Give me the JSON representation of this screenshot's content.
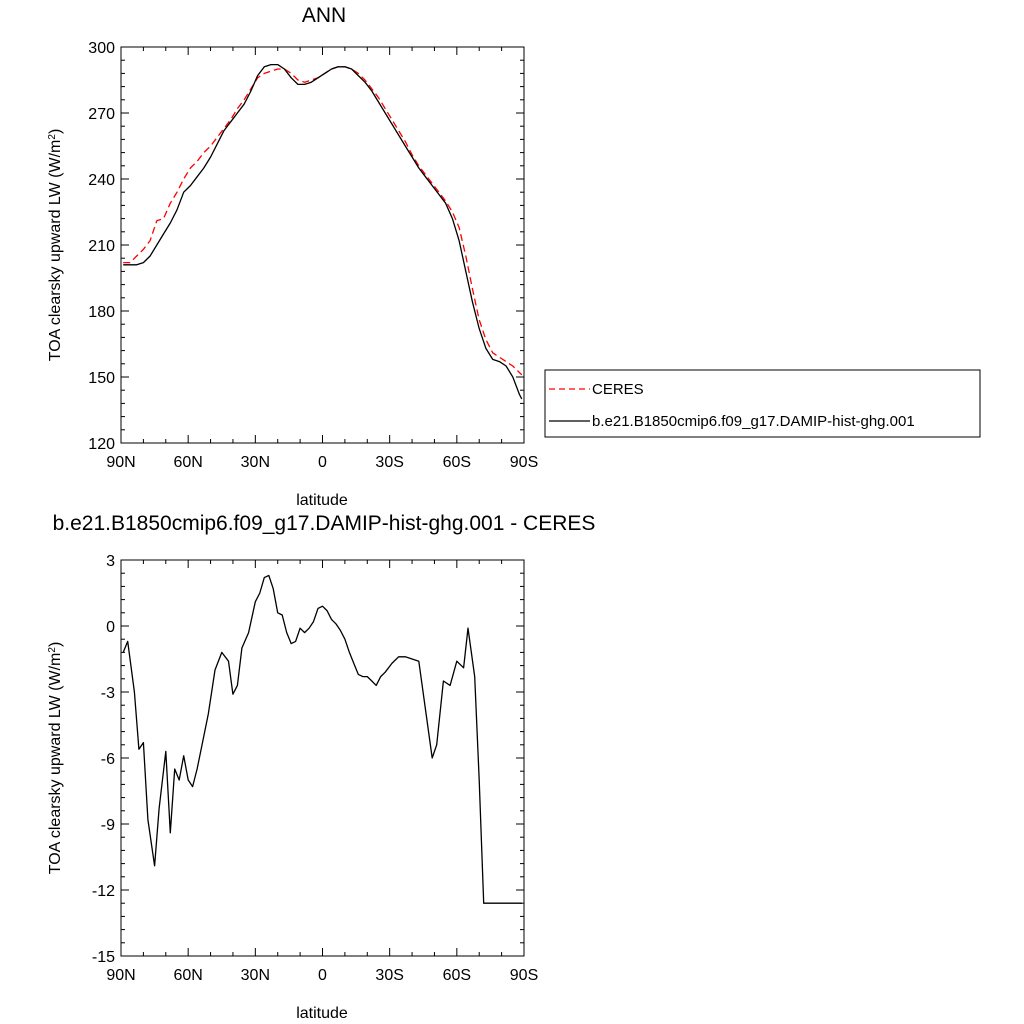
{
  "chart_data": [
    {
      "type": "line",
      "title": "ANN",
      "xlabel": "latitude",
      "ylabel": "TOA clearsky upward LW (W/m",
      "ylabel_sup": "2",
      "ylabel_close": ")",
      "xlim": [
        90,
        -90
      ],
      "ylim": [
        120,
        300
      ],
      "xticks": [
        90,
        60,
        30,
        0,
        -30,
        -60,
        -90
      ],
      "xtick_labels": [
        "90N",
        "60N",
        "30N",
        "0",
        "30S",
        "60S",
        "90S"
      ],
      "yticks": [
        120,
        150,
        180,
        210,
        240,
        270,
        300
      ],
      "ytick_labels": [
        "120",
        "150",
        "180",
        "210",
        "240",
        "270",
        "300"
      ],
      "legend_position": "right",
      "series": [
        {
          "name": "CERES",
          "color": "#ff0000",
          "dash": "dashed",
          "x": [
            89,
            86,
            83,
            80,
            77,
            74,
            71,
            68,
            65,
            62,
            59,
            56,
            53,
            50,
            47,
            44,
            41,
            38,
            35,
            32,
            29,
            26,
            23,
            20,
            17,
            14,
            11,
            8,
            5,
            2,
            -1,
            -4,
            -7,
            -10,
            -13,
            -16,
            -19,
            -22,
            -25,
            -28,
            -31,
            -34,
            -37,
            -40,
            -43,
            -46,
            -49,
            -52,
            -55,
            -58,
            -61,
            -64,
            -67,
            -70,
            -73,
            -76,
            -79,
            -82,
            -85,
            -88,
            -89
          ],
          "y": [
            202,
            202,
            205,
            208,
            212,
            221,
            222,
            229,
            234,
            240,
            245,
            248,
            252,
            255,
            259,
            263,
            267,
            272,
            276,
            281,
            286,
            288,
            289,
            290,
            290,
            288,
            285,
            284,
            285,
            286,
            288,
            290,
            291,
            291,
            290,
            288,
            285,
            281,
            277,
            272,
            267,
            262,
            257,
            251,
            246,
            242,
            238,
            234,
            230,
            225,
            218,
            205,
            190,
            176,
            167,
            161,
            159,
            157,
            155,
            152,
            151
          ]
        },
        {
          "name": "b.e21.B1850cmip6.f09_g17.DAMIP-hist-ghg.001",
          "color": "#000000",
          "dash": "solid",
          "x": [
            89,
            86,
            83,
            80,
            77,
            74,
            71,
            68,
            65,
            62,
            59,
            56,
            53,
            50,
            47,
            44,
            41,
            38,
            35,
            32,
            29,
            26,
            23,
            20,
            17,
            14,
            11,
            8,
            5,
            2,
            -1,
            -4,
            -7,
            -10,
            -13,
            -16,
            -19,
            -22,
            -25,
            -28,
            -31,
            -34,
            -37,
            -40,
            -43,
            -46,
            -49,
            -52,
            -55,
            -58,
            -61,
            -64,
            -67,
            -70,
            -73,
            -76,
            -79,
            -82,
            -85,
            -88,
            -89
          ],
          "y": [
            201,
            201,
            201,
            202,
            205,
            210,
            215,
            220,
            226,
            234,
            237,
            241,
            245,
            250,
            256,
            262,
            266,
            270,
            274,
            280,
            287,
            291,
            292,
            292,
            290,
            286,
            283,
            283,
            284,
            286,
            288,
            290,
            291,
            291,
            290,
            287,
            284,
            280,
            275,
            270,
            265,
            260,
            255,
            250,
            245,
            241,
            237,
            233,
            229,
            222,
            212,
            198,
            184,
            172,
            163,
            158,
            157,
            155,
            150,
            142,
            140
          ]
        }
      ]
    },
    {
      "type": "line",
      "title": "b.e21.B1850cmip6.f09_g17.DAMIP-hist-ghg.001 - CERES",
      "xlabel": "latitude",
      "ylabel": "TOA clearsky upward LW (W/m",
      "ylabel_sup": "2",
      "ylabel_close": ")",
      "xlim": [
        90,
        -90
      ],
      "ylim": [
        -15,
        3
      ],
      "xticks": [
        90,
        60,
        30,
        0,
        -30,
        -60,
        -90
      ],
      "xtick_labels": [
        "90N",
        "60N",
        "30N",
        "0",
        "30S",
        "60S",
        "90S"
      ],
      "yticks": [
        -15,
        -12,
        -9,
        -6,
        -3,
        0,
        3
      ],
      "ytick_labels": [
        "-15",
        "-12",
        "-9",
        "-6",
        "-3",
        "0",
        "3"
      ],
      "series": [
        {
          "color": "#000000",
          "dash": "solid",
          "x": [
            89,
            87,
            84,
            82,
            80,
            78,
            75,
            73,
            70,
            68,
            66,
            64,
            62,
            60,
            58,
            56,
            54,
            51,
            48,
            45,
            42,
            40,
            38,
            36,
            33,
            30,
            28,
            26,
            24,
            22,
            20,
            18,
            16,
            14,
            12,
            10,
            8,
            6,
            4,
            2,
            0,
            -2,
            -4,
            -6,
            -8,
            -10,
            -12,
            -14,
            -16,
            -18,
            -20,
            -22,
            -24,
            -26,
            -28,
            -31,
            -34,
            -37,
            -40,
            -43,
            -46,
            -49,
            -51,
            -54,
            -57,
            -60,
            -63,
            -65,
            -68,
            -70,
            -72,
            -74,
            -76,
            -78,
            -80,
            -82,
            -84,
            -86,
            -88,
            -89
          ],
          "y": [
            -1.2,
            -0.7,
            -3.0,
            -5.6,
            -5.3,
            -8.8,
            -10.9,
            -8.3,
            -5.7,
            -9.4,
            -6.5,
            -7.0,
            -5.9,
            -7.0,
            -7.3,
            -6.5,
            -5.5,
            -4.0,
            -2.0,
            -1.2,
            -1.6,
            -3.1,
            -2.7,
            -1.0,
            -0.3,
            1.1,
            1.5,
            2.2,
            2.3,
            1.7,
            0.6,
            0.5,
            -0.3,
            -0.8,
            -0.7,
            -0.1,
            -0.3,
            -0.1,
            0.2,
            0.8,
            0.9,
            0.7,
            0.3,
            0.1,
            -0.2,
            -0.6,
            -1.2,
            -1.7,
            -2.2,
            -2.3,
            -2.3,
            -2.5,
            -2.7,
            -2.3,
            -2.1,
            -1.7,
            -1.4,
            -1.4,
            -1.5,
            -1.6,
            -3.8,
            -6.0,
            -5.4,
            -2.5,
            -2.7,
            -1.6,
            -1.9,
            -0.1,
            -2.3,
            -7.0,
            -12.6,
            -12.6,
            -12.6,
            -12.6,
            -12.6,
            -12.6,
            -12.6,
            -12.6,
            -12.6,
            -12.6
          ]
        }
      ]
    }
  ]
}
